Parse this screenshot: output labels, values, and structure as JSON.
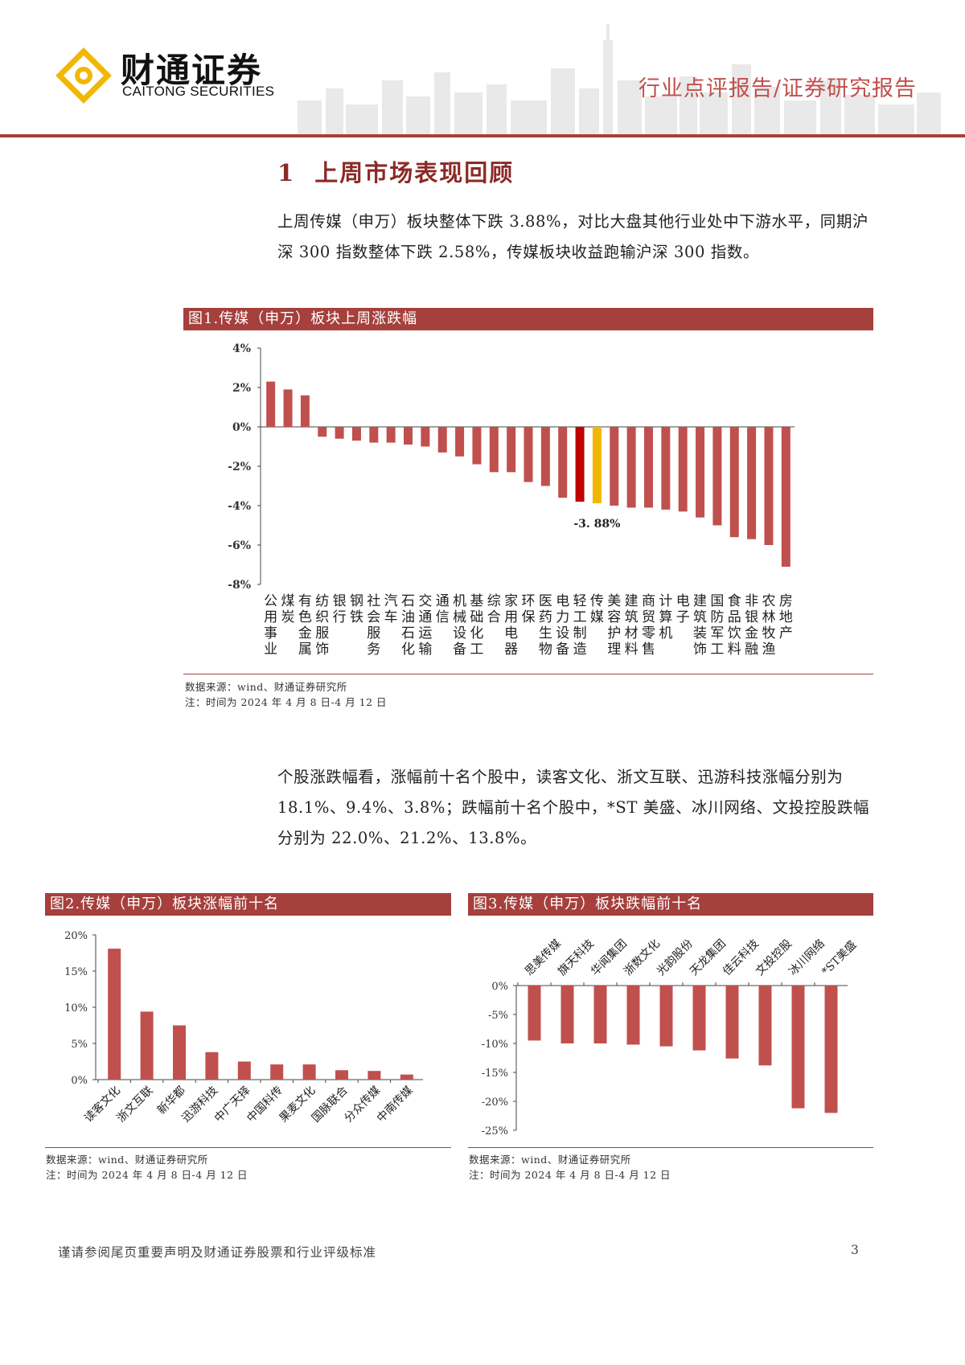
{
  "header": {
    "brand_cn": "财通证券",
    "brand_en": "CAITONG SECURITIES",
    "report_type": "行业点评报告/证券研究报告",
    "accent_color": "#a5403c",
    "logo_color": "#f2b705"
  },
  "section": {
    "number": "1",
    "title": "上周市场表现回顾",
    "paragraph1": "上周传媒（申万）板块整体下跌 3.88%，对比大盘其他行业处中下游水平，同期沪深 300 指数整体下跌 2.58%，传媒板块收益跑输沪深 300 指数。",
    "paragraph2": "个股涨跌幅看，涨幅前十名个股中，读客文化、浙文互联、迅游科技涨幅分别为 18.1%、9.4%、3.8%；跌幅前十名个股中，*ST 美盛、冰川网络、文投控股跌幅分别为 22.0%、21.2%、13.8%。"
  },
  "figures": {
    "fig1": {
      "title": "图1.传媒（申万）板块上周涨跌幅",
      "source": "数据来源：wind、财通证券研究所",
      "note": "注：时间为 2024 年 4 月 8 日-4 月 12 日",
      "annotation": "-3. 88%"
    },
    "fig2": {
      "title": "图2.传媒（申万）板块涨幅前十名",
      "source": "数据来源：wind、财通证券研究所",
      "note": "注：时间为 2024 年 4 月 8 日-4 月 12 日"
    },
    "fig3": {
      "title": "图3.传媒（申万）板块跌幅前十名",
      "source": "数据来源：wind、财通证券研究所",
      "note": "注：时间为 2024 年 4 月 8 日-4 月 12 日"
    }
  },
  "chart_data": [
    {
      "type": "bar",
      "categories": [
        "公用事业",
        "煤炭",
        "有色金属",
        "纺织服饰",
        "银行",
        "钢铁",
        "社会服务",
        "汽车",
        "石油石化",
        "交通运输",
        "通信",
        "机械设备",
        "基础化工",
        "综合",
        "家用电器",
        "环保",
        "医药生物",
        "电力设备",
        "轻工制造",
        "传媒",
        "美容护理",
        "建筑材料",
        "商贸零售",
        "计算机",
        "电子",
        "建筑装饰",
        "国防军工",
        "食品饮料",
        "非银金融",
        "农林牧渔",
        "房地产"
      ],
      "values": [
        2.3,
        1.9,
        1.6,
        -0.5,
        -0.6,
        -0.7,
        -0.8,
        -0.8,
        -0.9,
        -1.0,
        -1.3,
        -1.5,
        -1.9,
        -2.3,
        -2.3,
        -2.8,
        -3.0,
        -3.6,
        -3.8,
        -3.88,
        -4.0,
        -4.1,
        -4.1,
        -4.2,
        -4.3,
        -4.6,
        -5.0,
        -5.6,
        -5.7,
        -6.0,
        -7.1
      ],
      "ylim": [
        -8,
        4
      ],
      "yticks": [
        "4%",
        "2%",
        "0%",
        "-2%",
        "-4%",
        "-6%",
        "-8%"
      ],
      "bar_color": "#c0504d",
      "highlight_colors": {
        "轻工制造": "#c00000",
        "传媒": "#f2b705"
      }
    },
    {
      "type": "bar",
      "categories": [
        "读客文化",
        "浙文互联",
        "新华都",
        "迅游科技",
        "中广天择",
        "中国科传",
        "果麦文化",
        "国脉联合",
        "分众传媒",
        "中南传媒"
      ],
      "values": [
        18.1,
        9.4,
        7.5,
        3.8,
        2.5,
        2.1,
        2.1,
        1.3,
        1.2,
        0.7
      ],
      "ylim": [
        0,
        20
      ],
      "yticks": [
        "20%",
        "15%",
        "10%",
        "5%",
        "0%"
      ],
      "bar_color": "#c0504d"
    },
    {
      "type": "bar",
      "categories": [
        "思美传媒",
        "旗天科技",
        "华闻集团",
        "浙数文化",
        "光韵股份",
        "天龙集团",
        "佳云科技",
        "文投控股",
        "冰川网络",
        "*ST美盛"
      ],
      "values": [
        -9.5,
        -10.0,
        -10.0,
        -10.2,
        -10.5,
        -11.2,
        -12.6,
        -13.8,
        -21.2,
        -22.0
      ],
      "ylim": [
        -25,
        0
      ],
      "yticks": [
        "0%",
        "-5%",
        "-10%",
        "-15%",
        "-20%",
        "-25%"
      ],
      "bar_color": "#c0504d"
    }
  ],
  "footer": {
    "disclaimer": "谨请参阅尾页重要声明及财通证券股票和行业评级标准",
    "page_number": "3"
  }
}
